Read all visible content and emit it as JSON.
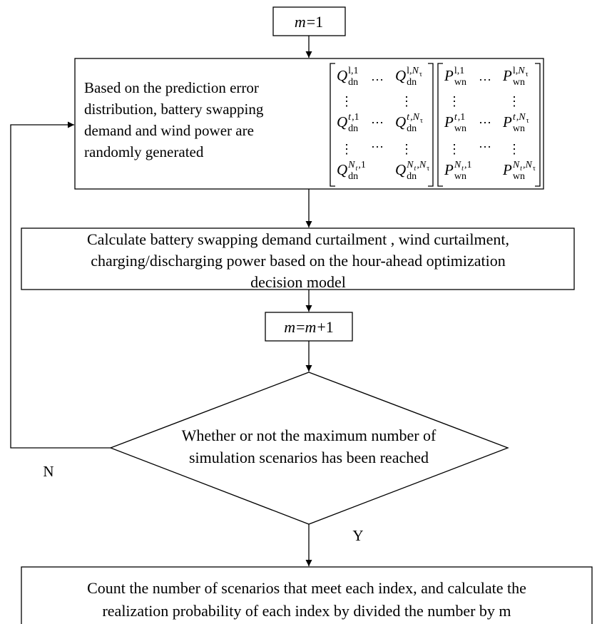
{
  "start": {
    "runs": [
      {
        "text": "m",
        "italic": true
      },
      {
        "text": "=1"
      }
    ]
  },
  "generate": {
    "lines": [
      "Based on the prediction error",
      "distribution, battery swapping",
      "demand and wind power are",
      "randomly generated"
    ],
    "matrices": [
      {
        "rows": [
          [
            {
              "base": "Q",
              "sub": "dn",
              "sup": [
                {
                  "text": "l,1"
                }
              ]
            },
            {
              "dots": "…"
            },
            {
              "base": "Q",
              "sub": "dn",
              "sup": [
                {
                  "text": "l,"
                },
                {
                  "text": "N",
                  "italic": true
                },
                {
                  "text": "τ",
                  "sub": true
                }
              ]
            }
          ],
          [
            {
              "dots": "⋮"
            },
            null,
            {
              "dots": "⋮"
            }
          ],
          [
            {
              "base": "Q",
              "sub": "dn",
              "sup": [
                {
                  "text": "t",
                  "italic": true
                },
                {
                  "text": ",1"
                }
              ]
            },
            {
              "dots": "⋯"
            },
            {
              "base": "Q",
              "sub": "dn",
              "sup": [
                {
                  "text": "t",
                  "italic": true
                },
                {
                  "text": ","
                },
                {
                  "text": "N",
                  "italic": true
                },
                {
                  "text": "τ",
                  "sub": true
                }
              ]
            }
          ],
          [
            {
              "dots": "⋮"
            },
            {
              "dots": "…"
            },
            {
              "dots": "⋮"
            }
          ],
          [
            {
              "base": "Q",
              "sub": "dn",
              "sup": [
                {
                  "text": "N",
                  "italic": true
                },
                {
                  "text": "t",
                  "italic": true,
                  "sub": true
                },
                {
                  "text": ",1"
                }
              ]
            },
            null,
            {
              "base": "Q",
              "sub": "dn",
              "sup": [
                {
                  "text": "N",
                  "italic": true
                },
                {
                  "text": "t",
                  "italic": true,
                  "sub": true
                },
                {
                  "text": ","
                },
                {
                  "text": "N",
                  "italic": true
                },
                {
                  "text": "τ",
                  "sub": true
                }
              ]
            }
          ]
        ]
      },
      {
        "rows": [
          [
            {
              "base": "P",
              "sub": "wn",
              "sup": [
                {
                  "text": "l,1"
                }
              ]
            },
            {
              "dots": "…"
            },
            {
              "base": "P",
              "sub": "wn",
              "sup": [
                {
                  "text": "l,"
                },
                {
                  "text": "N",
                  "italic": true
                },
                {
                  "text": "τ",
                  "sub": true
                }
              ]
            }
          ],
          [
            {
              "dots": "⋮"
            },
            null,
            {
              "dots": "⋮"
            }
          ],
          [
            {
              "base": "P",
              "sub": "wn",
              "sup": [
                {
                  "text": "t",
                  "italic": true
                },
                {
                  "text": ",1"
                }
              ]
            },
            {
              "dots": "⋯"
            },
            {
              "base": "P",
              "sub": "wn",
              "sup": [
                {
                  "text": "t",
                  "italic": true
                },
                {
                  "text": ","
                },
                {
                  "text": "N",
                  "italic": true
                },
                {
                  "text": "τ",
                  "sub": true
                }
              ]
            }
          ],
          [
            {
              "dots": "⋮"
            },
            {
              "dots": "…"
            },
            {
              "dots": "⋮"
            }
          ],
          [
            {
              "base": "P",
              "sub": "wn",
              "sup": [
                {
                  "text": "N",
                  "italic": true
                },
                {
                  "text": "t",
                  "italic": true,
                  "sub": true
                },
                {
                  "text": ",1"
                }
              ]
            },
            null,
            {
              "base": "P",
              "sub": "wn",
              "sup": [
                {
                  "text": "N",
                  "italic": true
                },
                {
                  "text": "t",
                  "italic": true,
                  "sub": true
                },
                {
                  "text": ","
                },
                {
                  "text": "N",
                  "italic": true
                },
                {
                  "text": "τ",
                  "sub": true
                }
              ]
            }
          ]
        ]
      }
    ]
  },
  "calculate": {
    "lines": [
      "Calculate battery swapping demand curtailment , wind curtailment,",
      "charging/discharging power based on the hour-ahead optimization",
      "decision model"
    ]
  },
  "increment": {
    "runs": [
      {
        "text": "m",
        "italic": true
      },
      {
        "text": "="
      },
      {
        "text": "m",
        "italic": true
      },
      {
        "text": "+1"
      }
    ]
  },
  "decision": {
    "lines": [
      "Whether or not the maximum number of",
      "simulation scenarios has been reached"
    ]
  },
  "count": {
    "lines": [
      "Count the number of scenarios that meet each index, and calculate the",
      "realization probability of each index by divided the number by m"
    ]
  },
  "edge_labels": {
    "no": "N",
    "yes": "Y"
  }
}
